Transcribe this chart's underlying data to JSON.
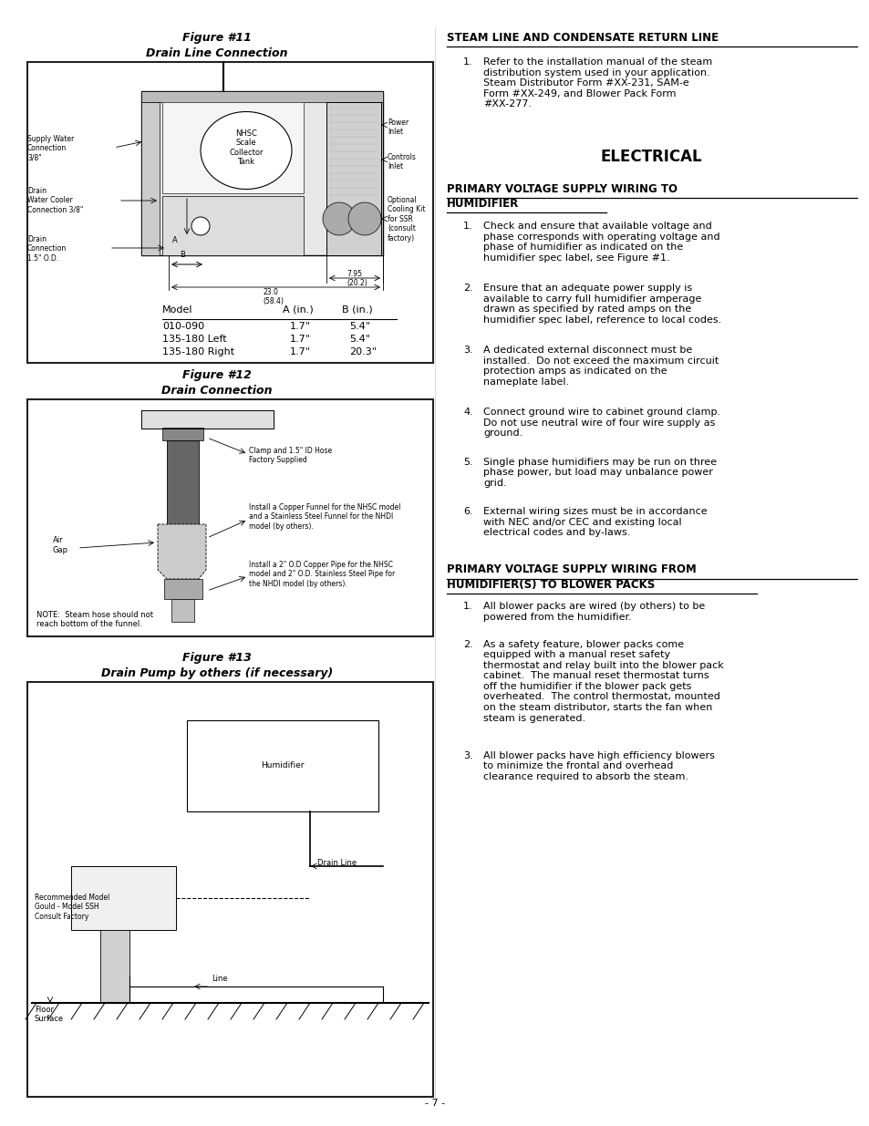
{
  "bg_color": "#ffffff",
  "page_number": "- 7 -",
  "fig11_title": "Figure #11",
  "fig11_subtitle": "Drain Line Connection",
  "fig12_title": "Figure #12",
  "fig12_subtitle": "Drain Connection",
  "fig13_title": "Figure #13",
  "fig13_subtitle": "Drain Pump by others (if necessary)",
  "section_steam": "STEAM LINE AND CONDENSATE RETURN LINE",
  "section_electrical": "ELECTRICAL",
  "steam_item": "Refer to the installation manual of the steam\ndistribution system used in your application.\nSteam Distributor Form #XX-231, SAM-e\nForm #XX-249, and Blower Pack Form\n#XX-277.",
  "primary1_title_line1": "PRIMARY VOLTAGE SUPPLY WIRING TO",
  "primary1_title_line2": "HUMIDIFIER",
  "primary1_items": [
    "Check and ensure that available voltage and\nphase corresponds with operating voltage and\nphase of humidifier as indicated on the\nhumidifier spec label, see Figure #1.",
    "Ensure that an adequate power supply is\navailable to carry full humidifier amperage\ndrawn as specified by rated amps on the\nhumidifier spec label, reference to local codes.",
    "A dedicated external disconnect must be\ninstalled.  Do not exceed the maximum circuit\nprotection amps as indicated on the\nnameplate label.",
    "Connect ground wire to cabinet ground clamp.\nDo not use neutral wire of four wire supply as\nground.",
    "Single phase humidifiers may be run on three\nphase power, but load may unbalance power\ngrid.",
    "External wiring sizes must be in accordance\nwith NEC and/or CEC and existing local\nelectrical codes and by-laws."
  ],
  "primary2_title_line1": "PRIMARY VOLTAGE SUPPLY WIRING FROM",
  "primary2_title_line2": "HUMIDIFIER(S) TO BLOWER PACKS",
  "primary2_items": [
    "All blower packs are wired (by others) to be\npowered from the humidifier.",
    "As a safety feature, blower packs come\nequipped with a manual reset safety\nthermostat and relay built into the blower pack\ncabinet.  The manual reset thermostat turns\noff the humidifier if the blower pack gets\noverheated.  The control thermostat, mounted\non the steam distributor, starts the fan when\nsteam is generated.",
    "All blower packs have high efficiency blowers\nto minimize the frontal and overhead\nclearance required to absorb the steam."
  ]
}
